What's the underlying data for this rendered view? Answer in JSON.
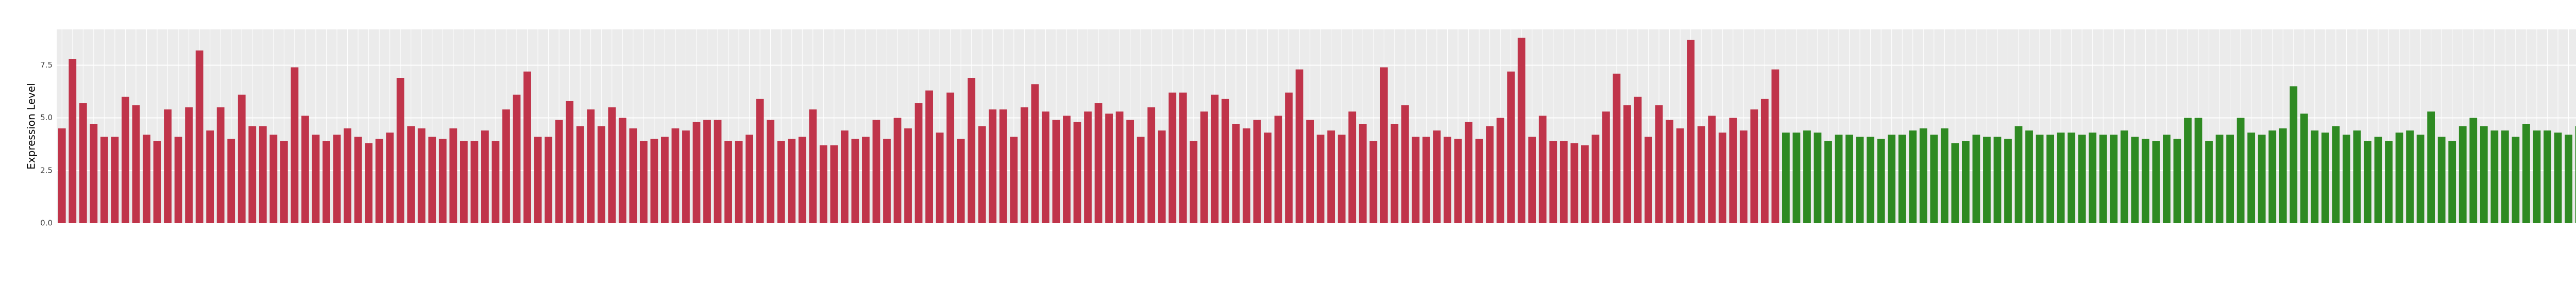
{
  "chart_data": {
    "type": "bar",
    "y_label": "Expression Level",
    "ylim": [
      0,
      9.2
    ],
    "yticks": [
      {
        "value": 0,
        "label": "0.0"
      },
      {
        "value": 2.5,
        "label": "2.5"
      },
      {
        "value": 5,
        "label": "5.0"
      },
      {
        "value": 7.5,
        "label": "7.5"
      }
    ],
    "grid": true,
    "series": [
      {
        "color": "#c0344a",
        "values": [
          4.5,
          7.8,
          5.7,
          4.7,
          4.1,
          4.1,
          6.0,
          5.6,
          4.2,
          3.9,
          5.4,
          4.1,
          5.5,
          8.2,
          4.4,
          5.5,
          4.0,
          6.1,
          4.6,
          4.6,
          4.2,
          3.9,
          7.4,
          5.1,
          4.2,
          3.9,
          4.2,
          4.5,
          4.1,
          3.8,
          4.0,
          4.3,
          6.9,
          4.6,
          4.5,
          4.1,
          4.0,
          4.5,
          3.9,
          3.9,
          4.4,
          3.9,
          5.4,
          6.1,
          7.2,
          4.1,
          4.1,
          4.9,
          5.8,
          4.6,
          5.4,
          4.6,
          5.5,
          5.0,
          4.5,
          3.9,
          4.0,
          4.1,
          4.5,
          4.4,
          4.8,
          4.9,
          4.9,
          3.9,
          3.9,
          4.2,
          5.9,
          4.9,
          3.9,
          4.0,
          4.1,
          5.4,
          3.7,
          3.7,
          4.4,
          4.0,
          4.1,
          4.9,
          4.0,
          5.0,
          4.5,
          5.7,
          6.3,
          4.3,
          6.2,
          4.0,
          6.9,
          4.6,
          5.4,
          5.4,
          4.1,
          5.5,
          6.6,
          5.3,
          4.9,
          5.1,
          4.8,
          5.3,
          5.7,
          5.2,
          5.3,
          4.9,
          4.1,
          5.5,
          4.4,
          6.2,
          6.2,
          3.9,
          5.3,
          6.1,
          5.9,
          4.7,
          4.5,
          4.9,
          4.3,
          5.1,
          6.2,
          7.3,
          4.9,
          4.2,
          4.4,
          4.2,
          5.3,
          4.7,
          3.9,
          7.4,
          4.7,
          5.6,
          4.1,
          4.1,
          4.4,
          4.1,
          4.0,
          4.8,
          4.0,
          4.6,
          5.0,
          7.2,
          8.8,
          4.1,
          5.1,
          3.9,
          3.9,
          3.8,
          3.7,
          4.2,
          5.3,
          7.1,
          5.6,
          6.0,
          4.1,
          5.6,
          4.9,
          4.5,
          8.7,
          4.6,
          5.1,
          4.3,
          5.0,
          4.4,
          5.4,
          5.9,
          7.3,
          null,
          null,
          null,
          null,
          null,
          null,
          null,
          null,
          null,
          null,
          null,
          null,
          null,
          null,
          null,
          null,
          null,
          null,
          null,
          null,
          null,
          null,
          null,
          null,
          null,
          null,
          null,
          null,
          null,
          null,
          null,
          null,
          null,
          null,
          null,
          null,
          null,
          null,
          null,
          null,
          null,
          null,
          null,
          null,
          null,
          null,
          null,
          null,
          null,
          null,
          null,
          null,
          null,
          null,
          null,
          null,
          null,
          null,
          null,
          null,
          null,
          null,
          null,
          null,
          null,
          null,
          null,
          null,
          null,
          null,
          null,
          null,
          null,
          null,
          null,
          null,
          null,
          null,
          null,
          null,
          null,
          null,
          null
        ]
      },
      {
        "color": "#2e8a22",
        "values": [
          null,
          null,
          null,
          null,
          null,
          null,
          null,
          null,
          null,
          null,
          null,
          null,
          null,
          null,
          null,
          null,
          null,
          null,
          null,
          null,
          null,
          null,
          null,
          null,
          null,
          null,
          null,
          null,
          null,
          null,
          null,
          null,
          null,
          null,
          null,
          null,
          null,
          null,
          null,
          null,
          null,
          null,
          null,
          null,
          null,
          null,
          null,
          null,
          null,
          null,
          null,
          null,
          null,
          null,
          null,
          null,
          null,
          null,
          null,
          null,
          null,
          null,
          null,
          null,
          null,
          null,
          null,
          null,
          null,
          null,
          null,
          null,
          null,
          null,
          null,
          null,
          null,
          null,
          null,
          null,
          null,
          null,
          null,
          null,
          null,
          null,
          null,
          null,
          null,
          null,
          null,
          null,
          null,
          null,
          null,
          null,
          null,
          null,
          null,
          null,
          null,
          null,
          null,
          null,
          null,
          null,
          null,
          null,
          null,
          null,
          null,
          null,
          null,
          null,
          null,
          null,
          null,
          null,
          null,
          null,
          null,
          null,
          null,
          null,
          null,
          null,
          null,
          null,
          null,
          null,
          null,
          null,
          null,
          null,
          null,
          null,
          null,
          null,
          null,
          null,
          null,
          null,
          null,
          null,
          null,
          null,
          null,
          null,
          null,
          null,
          null,
          null,
          null,
          null,
          null,
          null,
          null,
          null,
          null,
          null,
          null,
          null,
          null,
          4.3,
          4.3,
          4.4,
          4.3,
          3.9,
          4.2,
          4.2,
          4.1,
          4.1,
          4.0,
          4.2,
          4.2,
          4.4,
          4.5,
          4.2,
          4.5,
          3.8,
          3.9,
          4.2,
          4.1,
          4.1,
          4.0,
          4.6,
          4.4,
          4.2,
          4.2,
          4.3,
          4.3,
          4.2,
          4.3,
          4.2,
          4.2,
          4.4,
          4.1,
          4.0,
          3.9,
          4.2,
          4.0,
          5.0,
          5.0,
          3.9,
          4.2,
          4.2,
          5.0,
          4.3,
          4.2,
          4.4,
          4.5,
          6.5,
          5.2,
          4.4,
          4.3,
          4.6,
          4.2,
          4.4,
          3.9,
          4.1,
          3.9,
          4.3,
          4.4,
          4.2,
          5.3,
          4.1,
          3.9,
          4.6,
          5.0,
          4.6,
          4.4,
          4.4,
          4.1,
          4.7,
          4.4,
          4.4,
          4.3,
          4.2,
          4.6,
          4.1,
          4.4,
          5.1,
          4.0,
          4.2,
          4.4,
          4.3
        ]
      }
    ]
  }
}
